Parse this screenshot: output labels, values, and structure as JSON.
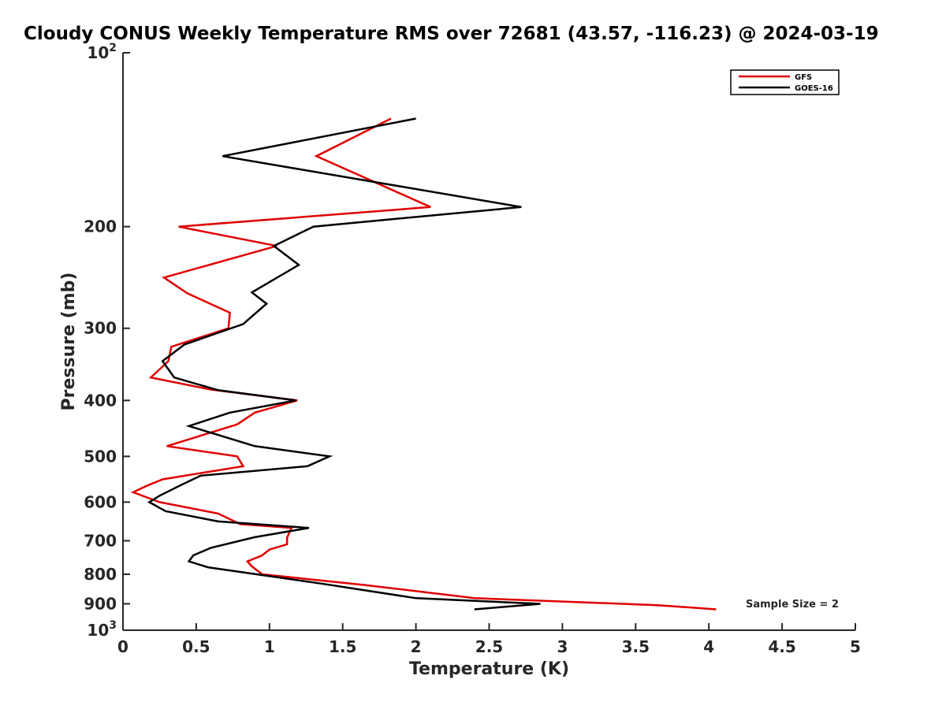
{
  "colors": {
    "gfs": "#e00000",
    "goes": "#000000",
    "axis": "#262626"
  },
  "chart_data": {
    "type": "line",
    "title": "Cloudy CONUS Weekly Temperature RMS over 72681 (43.57, -116.23) @ 2024-03-19",
    "xlabel": "Temperature (K)",
    "ylabel": "Pressure (mb)",
    "xlim": [
      0,
      5
    ],
    "ylim": [
      100,
      1000
    ],
    "y_scale": "log",
    "y_reversed": true,
    "x_ticks": [
      0,
      0.5,
      1,
      1.5,
      2,
      2.5,
      3,
      3.5,
      4,
      4.5,
      5
    ],
    "x_tick_labels": [
      "0",
      "0.5",
      "1",
      "1.5",
      "2",
      "2.5",
      "3",
      "3.5",
      "4",
      "4.5",
      "5"
    ],
    "y_ticks": [
      {
        "value": 100,
        "base": "10",
        "exp": "2"
      },
      {
        "value": 200,
        "label": "200"
      },
      {
        "value": 300,
        "label": "300"
      },
      {
        "value": 400,
        "label": "400"
      },
      {
        "value": 500,
        "label": "500"
      },
      {
        "value": 600,
        "label": "600"
      },
      {
        "value": 700,
        "label": "700"
      },
      {
        "value": 800,
        "label": "800"
      },
      {
        "value": 900,
        "label": "900"
      },
      {
        "value": 1000,
        "base": "10",
        "exp": "3"
      }
    ],
    "grid": false,
    "legend_position": "top-right",
    "annotation": "Sample Size = 2",
    "series": [
      {
        "name": "GFS",
        "color": "#e00000",
        "points": [
          [
            1.83,
            130
          ],
          [
            1.32,
            151
          ],
          [
            2.1,
            185
          ],
          [
            0.38,
            200
          ],
          [
            1.05,
            216
          ],
          [
            0.28,
            245
          ],
          [
            0.44,
            261
          ],
          [
            0.73,
            282
          ],
          [
            0.72,
            300
          ],
          [
            0.33,
            323
          ],
          [
            0.31,
            342
          ],
          [
            0.19,
            365
          ],
          [
            0.6,
            383
          ],
          [
            1.19,
            400
          ],
          [
            0.9,
            420
          ],
          [
            0.78,
            440
          ],
          [
            0.3,
            480
          ],
          [
            0.78,
            500
          ],
          [
            0.82,
            520
          ],
          [
            0.27,
            548
          ],
          [
            0.15,
            564
          ],
          [
            0.07,
            577
          ],
          [
            0.25,
            600
          ],
          [
            0.65,
            628
          ],
          [
            0.8,
            655
          ],
          [
            1.15,
            665
          ],
          [
            1.12,
            692
          ],
          [
            1.12,
            710
          ],
          [
            1.0,
            725
          ],
          [
            0.95,
            742
          ],
          [
            0.85,
            760
          ],
          [
            0.88,
            775
          ],
          [
            0.95,
            800
          ],
          [
            1.65,
            835
          ],
          [
            2.4,
            880
          ],
          [
            3.65,
            905
          ],
          [
            4.05,
            920
          ]
        ]
      },
      {
        "name": "GOES-16",
        "color": "#000000",
        "points": [
          [
            2.0,
            130
          ],
          [
            0.68,
            151
          ],
          [
            2.72,
            185
          ],
          [
            1.3,
            200
          ],
          [
            1.03,
            216
          ],
          [
            1.2,
            233
          ],
          [
            0.88,
            260
          ],
          [
            0.98,
            272
          ],
          [
            0.82,
            295
          ],
          [
            0.42,
            320
          ],
          [
            0.27,
            342
          ],
          [
            0.35,
            365
          ],
          [
            0.65,
            384
          ],
          [
            1.18,
            400
          ],
          [
            0.73,
            420
          ],
          [
            0.45,
            443
          ],
          [
            0.9,
            480
          ],
          [
            1.41,
            500
          ],
          [
            1.26,
            520
          ],
          [
            0.53,
            540
          ],
          [
            0.4,
            560
          ],
          [
            0.25,
            585
          ],
          [
            0.18,
            600
          ],
          [
            0.29,
            622
          ],
          [
            0.65,
            648
          ],
          [
            1.27,
            665
          ],
          [
            0.9,
            690
          ],
          [
            0.6,
            720
          ],
          [
            0.48,
            742
          ],
          [
            0.45,
            760
          ],
          [
            0.58,
            778
          ],
          [
            1.35,
            830
          ],
          [
            2.0,
            880
          ],
          [
            2.85,
            900
          ],
          [
            2.4,
            920
          ]
        ]
      }
    ]
  }
}
